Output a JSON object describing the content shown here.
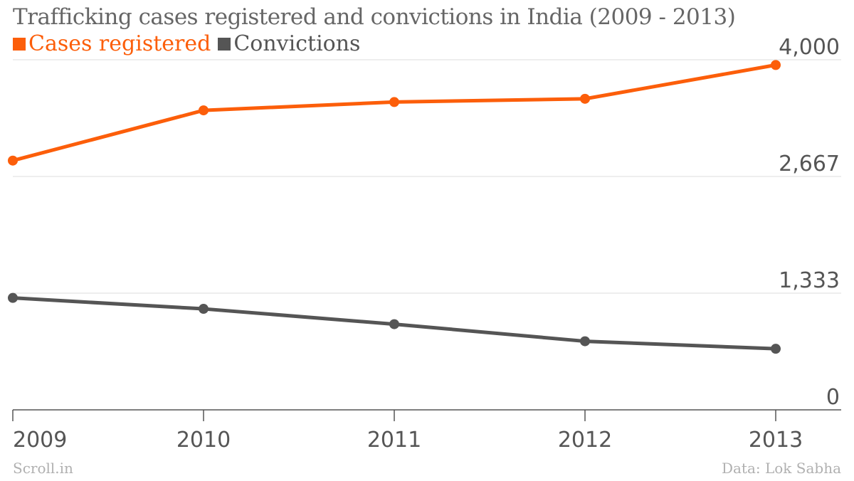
{
  "chart_data": {
    "type": "line",
    "title": "Trafficking cases registered and convictions in India (2009 - 2013)",
    "categories": [
      "2009",
      "2010",
      "2011",
      "2012",
      "2013"
    ],
    "series": [
      {
        "name": "Cases registered",
        "color": "#fc5e0a",
        "values": [
          2848,
          3422,
          3517,
          3554,
          3940
        ]
      },
      {
        "name": "Convictions",
        "color": "#555555",
        "values": [
          1279,
          1154,
          979,
          784,
          698
        ]
      }
    ],
    "ylim": [
      0,
      4000
    ],
    "yticks": [
      "0",
      "1,333",
      "2,667",
      "4,000"
    ],
    "ytick_values": [
      0,
      1333,
      2667,
      4000
    ],
    "grid": true
  },
  "source_left": "Scroll.in",
  "source_right": "Data: Lok Sabha"
}
